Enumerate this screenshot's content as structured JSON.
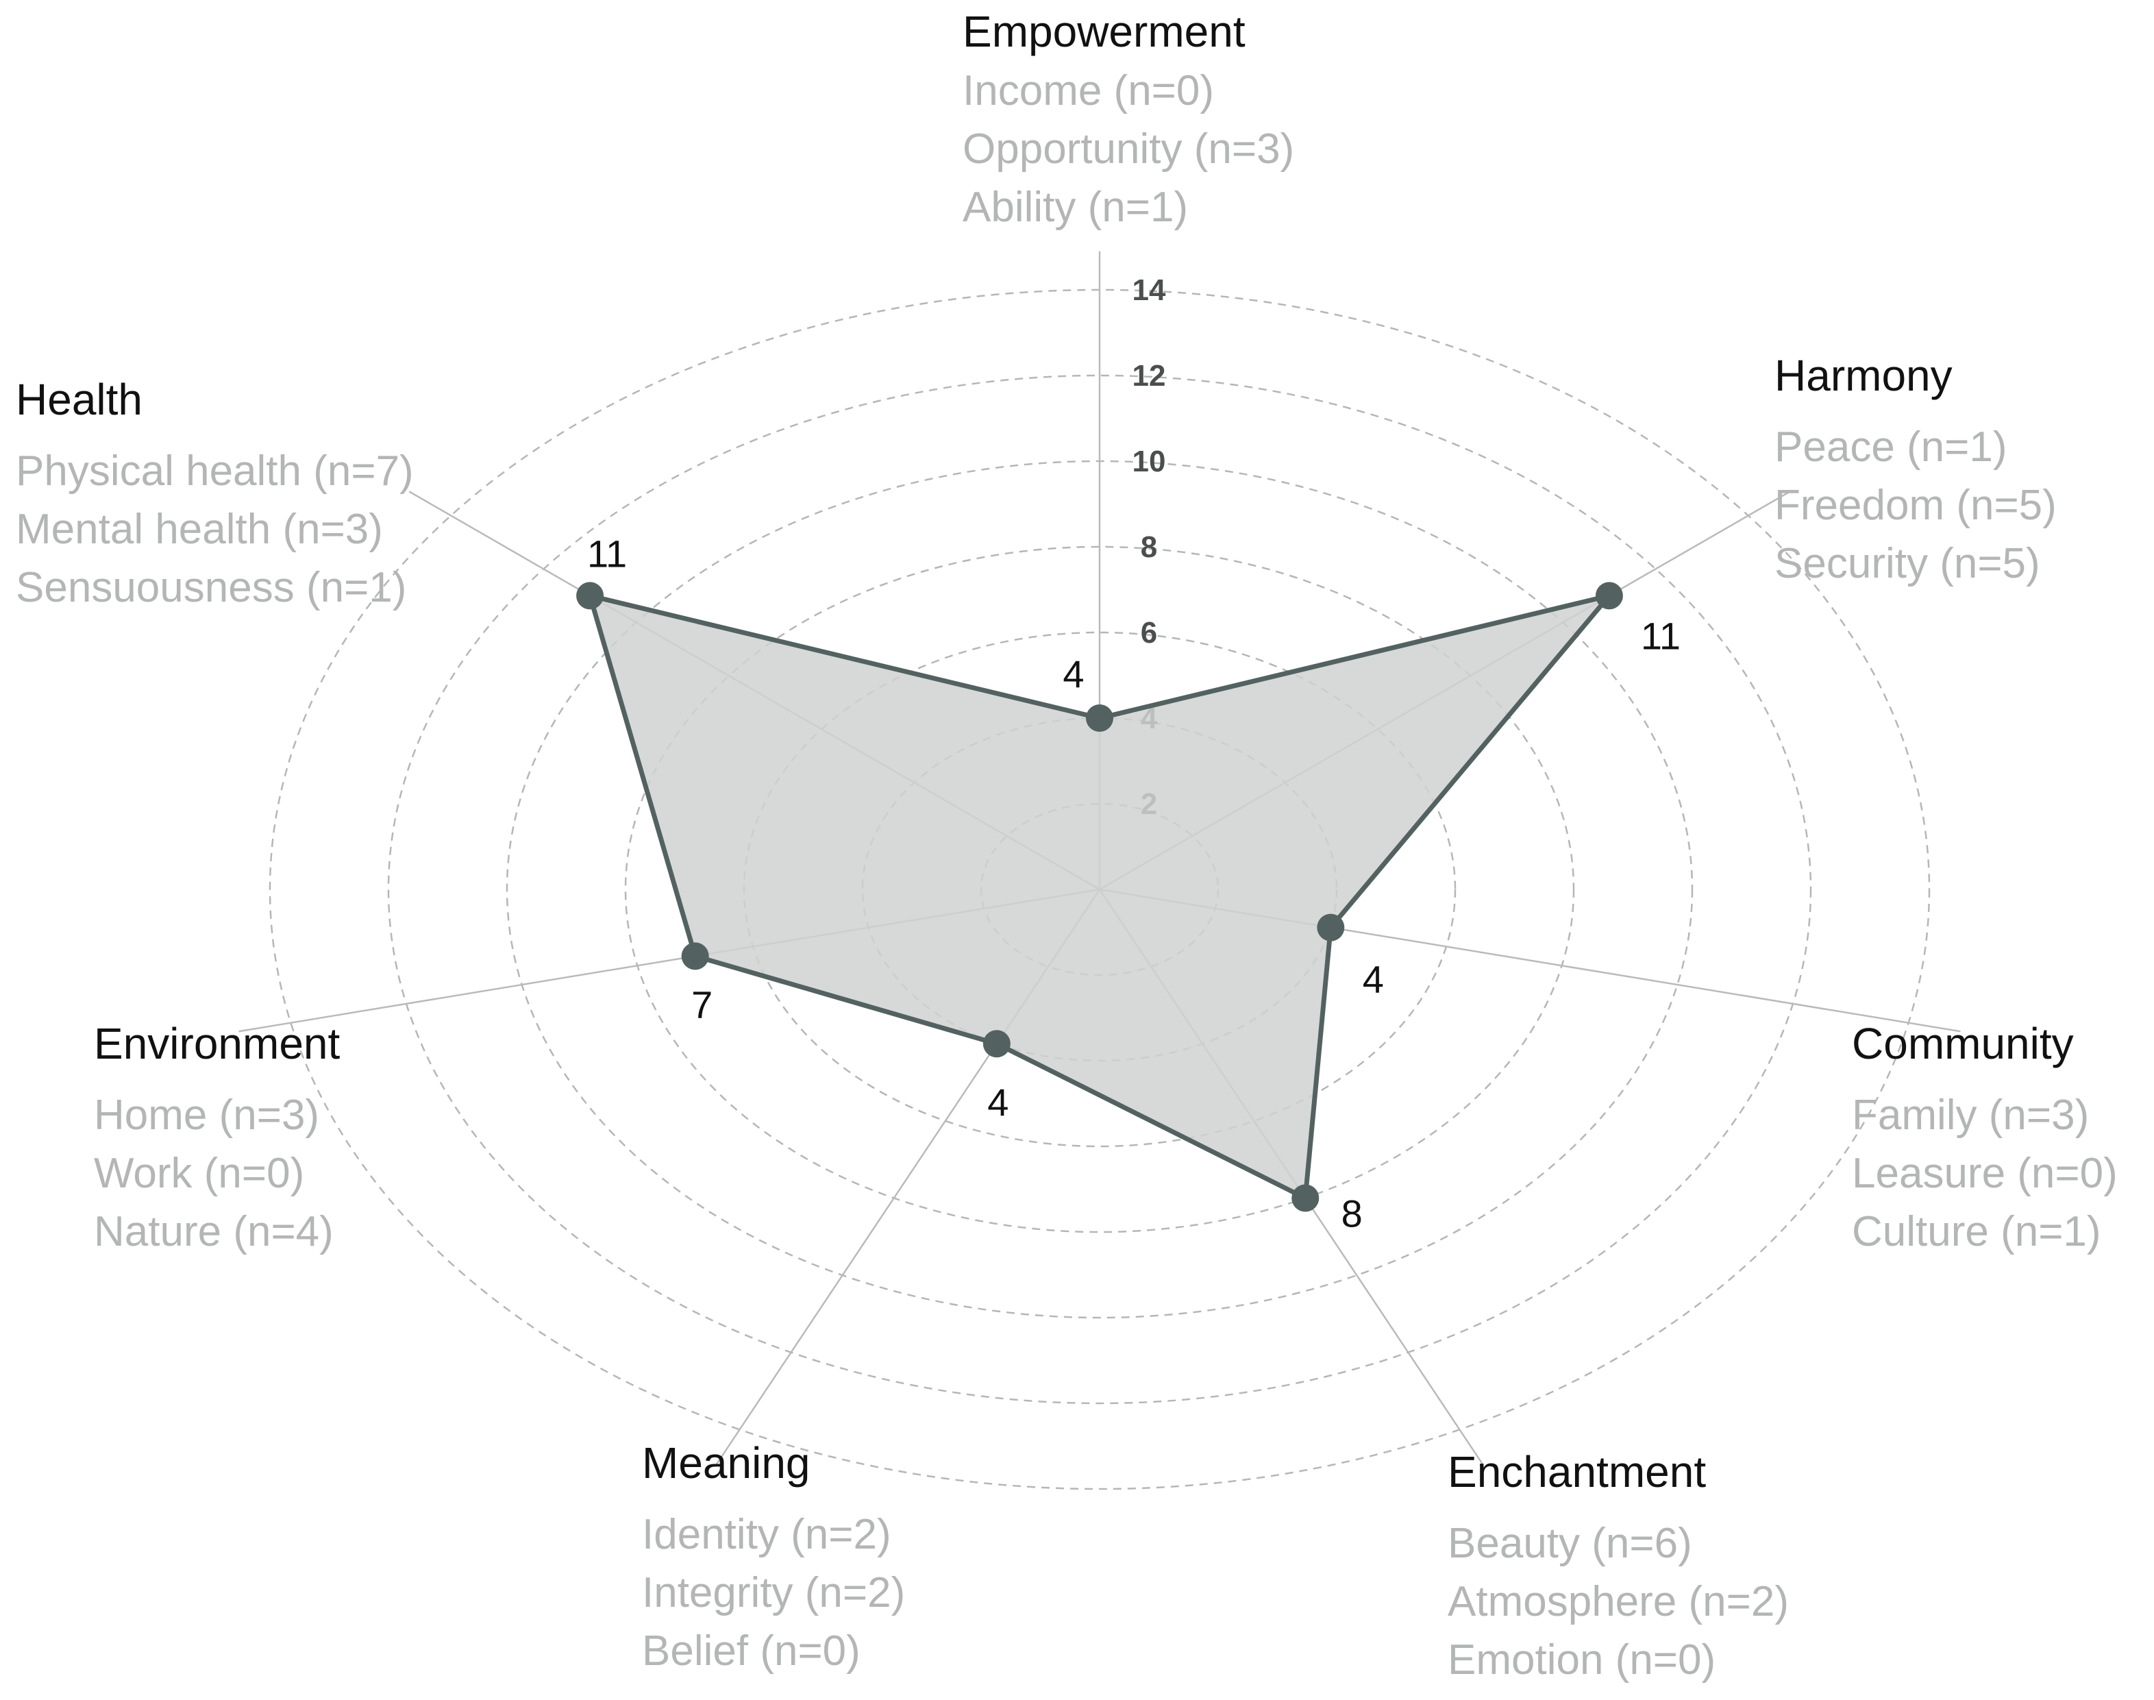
{
  "chart_data": {
    "type": "radar",
    "title": "",
    "rlim": [
      0,
      14
    ],
    "r_ticks": [
      2,
      4,
      6,
      8,
      10,
      12,
      14
    ],
    "grid": "dashed concentric rings",
    "colors": {
      "fill": "#cfd2d1",
      "line": "#536260",
      "marker": "#536260",
      "axis": "#b9bbba",
      "grid": "#b5b7b6",
      "category_title": "#111111",
      "category_sub": "#b3b6b5"
    },
    "categories": [
      {
        "name": "Empowerment",
        "value": 4,
        "value_label": "4",
        "sub": [
          "Income (n=0)",
          "Opportunity (n=3)",
          "Ability (n=1)"
        ]
      },
      {
        "name": "Harmony",
        "value": 11,
        "value_label": "11",
        "sub": [
          "Peace (n=1)",
          "Freedom (n=5)",
          "Security (n=5)"
        ]
      },
      {
        "name": "Community",
        "value": 4,
        "value_label": "4",
        "sub": [
          "Family (n=3)",
          "Leasure (n=0)",
          "Culture (n=1)"
        ]
      },
      {
        "name": "Enchantment",
        "value": 8,
        "value_label": "8",
        "sub": [
          "Beauty (n=6)",
          "Atmosphere (n=2)",
          "Emotion (n=0)"
        ]
      },
      {
        "name": "Meaning",
        "value": 4,
        "value_label": "4",
        "sub": [
          "Identity (n=2)",
          "Integrity (n=2)",
          "Belief (n=0)"
        ]
      },
      {
        "name": "Environment",
        "value": 7,
        "value_label": "7",
        "sub": [
          "Home (n=3)",
          "Work (n=0)",
          "Nature (n=4)"
        ]
      },
      {
        "name": "Health",
        "value": 11,
        "value_label": "11",
        "sub": [
          "Physical health (n=7)",
          "Mental health (n=3)",
          "Sensuousness (n=1)"
        ]
      }
    ]
  }
}
